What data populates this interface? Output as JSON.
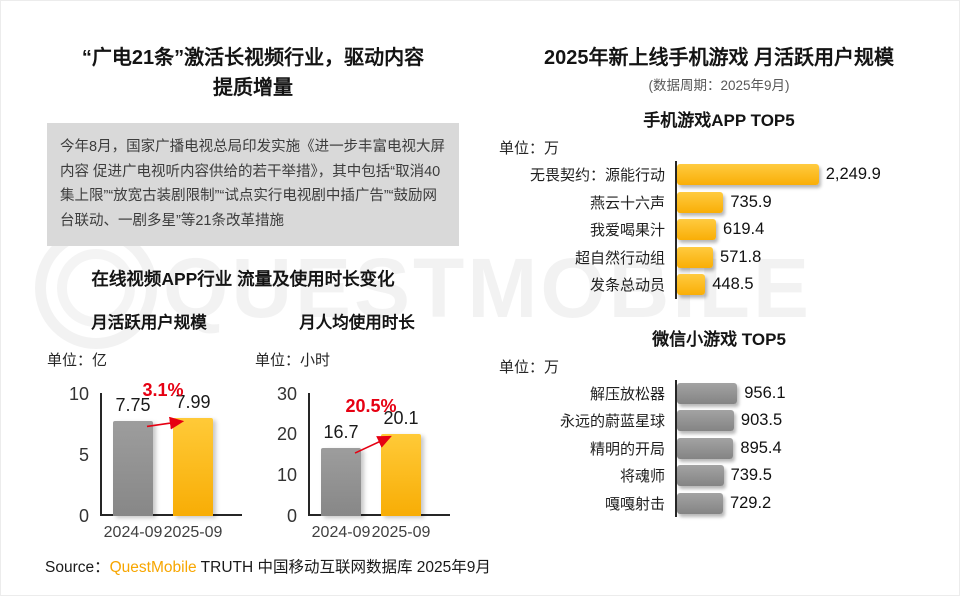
{
  "left": {
    "title_lines": [
      "“广电21条”激活长视频行业，驱动内容",
      "提质增量"
    ],
    "info_box": "今年8月，国家广播电视总局印发实施《进一步丰富电视大屏内容 促进广电视听内容供给的若干举措》，其中包括“取消40集上限”“放宽古装剧限制”“试点实行电视剧中插广告”“鼓励网台联动、一剧多星”等21条改革措施",
    "section_title": "在线视频APP行业 流量及使用时长变化"
  },
  "right": {
    "title": "2025年新上线手机游戏 月活跃用户规模",
    "subtitle": "(数据周期：2025年9月)"
  },
  "watermark": {
    "text": "QUESTMOBILE"
  },
  "footer": {
    "source_label": "Source：",
    "brand": "QuestMobile",
    "rest": " TRUTH 中国移动互联网数据库 2025年9月"
  },
  "colors": {
    "bar_yellow": "#F9AE06",
    "bar_gray": "#8F8F8F",
    "change_red": "#E60012",
    "brand_orange": "#F7A600",
    "info_box_bg": "#D9D9D9"
  },
  "chart_data": [
    {
      "id": "online-video-mau",
      "type": "bar",
      "title": "月活跃用户规模",
      "unit_label": "单位：亿",
      "categories": [
        "2024-09",
        "2025-09"
      ],
      "values": [
        7.75,
        7.99
      ],
      "value_labels": [
        "7.75",
        "7.99"
      ],
      "change_label": "3.1%",
      "ylim": [
        0,
        10
      ],
      "yticks": [
        0,
        5,
        10
      ],
      "bar_styles": [
        "gray",
        "yellow"
      ],
      "grid": false
    },
    {
      "id": "online-video-time-per-user",
      "type": "bar",
      "title": "月人均使用时长",
      "unit_label": "单位：小时",
      "categories": [
        "2024-09",
        "2025-09"
      ],
      "values": [
        16.7,
        20.1
      ],
      "value_labels": [
        "16.7",
        "20.1"
      ],
      "change_label": "20.5%",
      "ylim": [
        0,
        30
      ],
      "yticks": [
        0,
        10,
        20,
        30
      ],
      "bar_styles": [
        "gray",
        "yellow"
      ],
      "grid": false
    },
    {
      "id": "mobile-game-app-top5",
      "type": "bar",
      "orientation": "horizontal",
      "title": "手机游戏APP TOP5",
      "unit_label": "单位：万",
      "categories": [
        "无畏契约：源能行动",
        "燕云十六声",
        "我爱喝果汁",
        "超自然行动组",
        "发条总动员"
      ],
      "values": [
        2249.9,
        735.9,
        619.4,
        571.8,
        448.5
      ],
      "value_labels": [
        "2,249.9",
        "735.9",
        "619.4",
        "571.8",
        "448.5"
      ],
      "bar_style": "yellow",
      "grid": false
    },
    {
      "id": "wechat-minigame-top5",
      "type": "bar",
      "orientation": "horizontal",
      "title": "微信小游戏 TOP5",
      "unit_label": "单位：万",
      "categories": [
        "解压放松器",
        "永远的蔚蓝星球",
        "精明的开局",
        "将魂师",
        "嘎嘎射击"
      ],
      "values": [
        956.1,
        903.5,
        895.4,
        739.5,
        729.2
      ],
      "value_labels": [
        "956.1",
        "903.5",
        "895.4",
        "739.5",
        "729.2"
      ],
      "bar_style": "gray",
      "grid": false
    }
  ]
}
